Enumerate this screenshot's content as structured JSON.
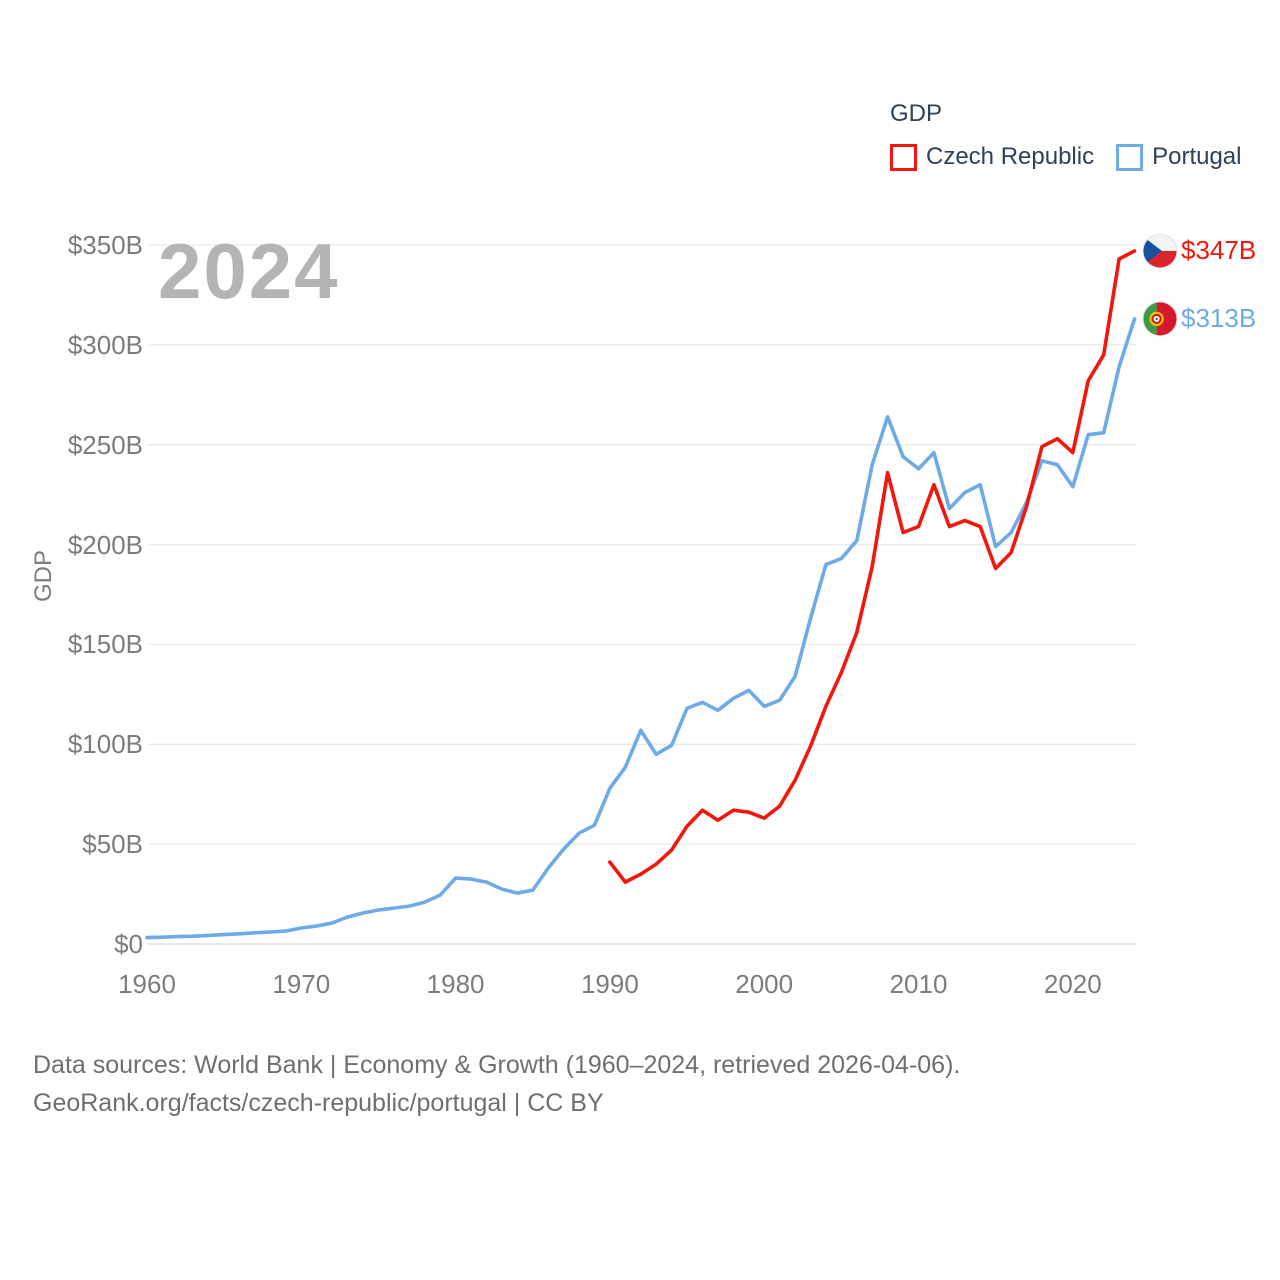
{
  "watermark": "2024",
  "legend": {
    "title": "GDP",
    "items": [
      {
        "label": "Czech Republic",
        "color": "#f2170d"
      },
      {
        "label": "Portugal",
        "color": "#6dabe8"
      }
    ]
  },
  "chart_data": {
    "type": "line",
    "title": "GDP",
    "ylabel": "GDP",
    "xlabel": "",
    "xlim": [
      1959.7,
      2024.6
    ],
    "ylim": [
      0,
      350
    ],
    "grid": "horizontal",
    "legend_position": "top-right",
    "x_ticks": [
      {
        "label": "1960",
        "year": 1960
      },
      {
        "label": "1970",
        "year": 1970
      },
      {
        "label": "1980",
        "year": 1980
      },
      {
        "label": "1990",
        "year": 1990
      },
      {
        "label": "2000",
        "year": 2000
      },
      {
        "label": "2010",
        "year": 2010
      },
      {
        "label": "2020",
        "year": 2020
      }
    ],
    "y_ticks": [
      {
        "label": "$0",
        "value": 0
      },
      {
        "label": "$50B",
        "value": 50
      },
      {
        "label": "$100B",
        "value": 100
      },
      {
        "label": "$150B",
        "value": 150
      },
      {
        "label": "$200B",
        "value": 200
      },
      {
        "label": "$250B",
        "value": 250
      },
      {
        "label": "$300B",
        "value": 300
      },
      {
        "label": "$350B",
        "value": 350
      }
    ],
    "series": [
      {
        "name": "Czech Republic",
        "color": "#f2170d",
        "flag": "cz",
        "start_year": 1990,
        "end_year": 2024,
        "end_label": "$347B",
        "values": [
          41,
          31,
          35,
          40,
          47,
          59,
          67,
          62,
          67,
          66,
          63,
          69,
          82,
          99,
          119,
          136,
          156,
          189,
          236,
          206,
          209,
          230,
          209,
          212,
          209,
          188,
          196,
          219,
          249,
          253,
          246,
          282,
          295,
          343,
          347
        ]
      },
      {
        "name": "Portugal",
        "color": "#6dabe8",
        "flag": "pt",
        "start_year": 1960,
        "end_year": 2024,
        "end_label": "$313B",
        "values": [
          3.2,
          3.4,
          3.7,
          3.9,
          4.3,
          4.7,
          5.1,
          5.6,
          6,
          6.5,
          8,
          9,
          10.5,
          13.5,
          15.5,
          17,
          18,
          19,
          21,
          24.5,
          33,
          32.5,
          31,
          27.5,
          25.5,
          27,
          38,
          47.5,
          55.5,
          59.5,
          78,
          88.5,
          107,
          95,
          99.5,
          118,
          121,
          117,
          123,
          127,
          119,
          122,
          134,
          163,
          190,
          193,
          202,
          240,
          264,
          244,
          238,
          246,
          218,
          226,
          230,
          199,
          206,
          221,
          242,
          240,
          229,
          255,
          256,
          289,
          313
        ]
      }
    ]
  },
  "footer": {
    "line1": "Data sources: World Bank | Economy & Growth (1960–2024, retrieved 2026-04-06).",
    "line2": "GeoRank.org/facts/czech-republic/portugal | CC BY"
  }
}
